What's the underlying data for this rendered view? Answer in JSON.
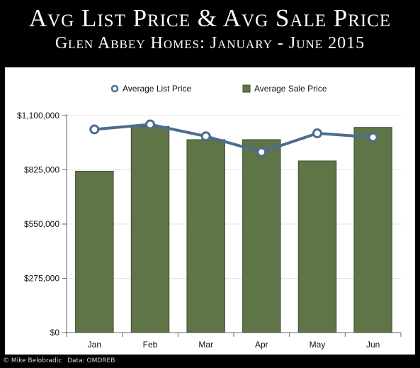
{
  "header": {
    "title": "Avg List Price & Avg Sale Price",
    "subtitle": "Glen Abbey Homes: January - June 2015"
  },
  "credit": {
    "author": "© Mike Belobradic",
    "source": "Data: OMDREB"
  },
  "colors": {
    "bar_fill": "#5f7447",
    "bar_stroke": "#3f5030",
    "line": "#4d6d8f",
    "marker_fill": "#ffffff",
    "grid": "#e4e4e4",
    "axis": "#666666"
  },
  "chart_data": {
    "type": "bar",
    "categories": [
      "Jan",
      "Feb",
      "Mar",
      "Apr",
      "May",
      "Jun"
    ],
    "series": [
      {
        "name": "Average List Price",
        "type": "line",
        "values": [
          1030000,
          1055000,
          995000,
          915000,
          1010000,
          990000
        ]
      },
      {
        "name": "Average Sale Price",
        "type": "bar",
        "values": [
          818000,
          1045000,
          978000,
          978000,
          870000,
          1040000
        ]
      }
    ],
    "yticks": [
      "$0",
      "$275,000",
      "$550,000",
      "$825,000",
      "$1,100,000"
    ],
    "ylim": [
      0,
      1100000
    ],
    "grid": true,
    "legend": "top"
  }
}
